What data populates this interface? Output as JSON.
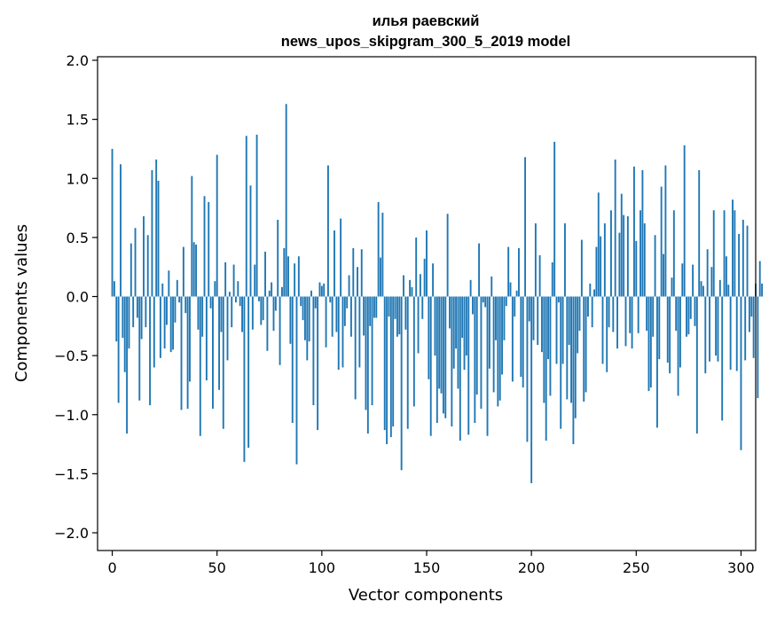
{
  "chart_data": {
    "type": "bar",
    "title_line1": "илья раевский",
    "title_line2": "news_upos_skipgram_300_5_2019 model",
    "xlabel": "Vector components",
    "ylabel": "Components values",
    "xlim": [
      -7,
      307
    ],
    "ylim": [
      -2.15,
      2.03
    ],
    "xticks": [
      0,
      50,
      100,
      150,
      200,
      250,
      300
    ],
    "xtick_labels": [
      "0",
      "50",
      "100",
      "150",
      "200",
      "250",
      "300"
    ],
    "yticks": [
      2.0,
      1.5,
      1.0,
      0.5,
      0.0,
      -0.5,
      -1.0,
      -1.5,
      -2.0
    ],
    "ytick_labels": [
      "2.0",
      "1.5",
      "1.0",
      "0.5",
      "0.0",
      "−0.5",
      "−1.0",
      "−1.5",
      "−2.0"
    ],
    "bar_color": "#1f77b4",
    "values": [
      1.25,
      0.13,
      -0.38,
      -0.9,
      1.12,
      -0.35,
      -0.64,
      -1.16,
      -0.44,
      0.45,
      -0.26,
      0.58,
      -0.18,
      -0.88,
      -0.36,
      0.68,
      -0.26,
      0.52,
      -0.92,
      1.07,
      -0.6,
      1.16,
      0.98,
      -0.52,
      0.11,
      -0.44,
      -0.24,
      0.22,
      -0.47,
      -0.45,
      -0.22,
      0.14,
      -0.05,
      -0.96,
      0.42,
      -0.14,
      -0.95,
      -0.72,
      1.02,
      0.46,
      0.44,
      -0.28,
      -1.18,
      -0.34,
      0.85,
      -0.71,
      0.8,
      -0.1,
      -0.95,
      0.13,
      1.2,
      -0.79,
      -0.3,
      -1.12,
      0.29,
      -0.54,
      0.04,
      -0.26,
      0.27,
      -0.05,
      0.13,
      -0.08,
      -0.3,
      -1.4,
      1.36,
      -1.28,
      0.94,
      -0.28,
      0.27,
      1.37,
      -0.04,
      -0.24,
      -0.2,
      0.38,
      -0.46,
      0.05,
      0.12,
      -0.29,
      -0.12,
      0.65,
      -0.58,
      0.08,
      0.41,
      1.63,
      0.34,
      -0.4,
      -1.07,
      0.28,
      -1.42,
      0.34,
      -0.08,
      -0.2,
      -0.37,
      -0.54,
      -0.38,
      0.05,
      -0.92,
      -0.1,
      -1.13,
      0.12,
      0.09,
      0.11,
      -0.43,
      1.11,
      -0.05,
      -0.34,
      0.56,
      -0.3,
      -0.62,
      0.66,
      -0.6,
      -0.25,
      -0.1,
      0.18,
      -0.34,
      0.41,
      -0.87,
      0.25,
      -0.6,
      0.4,
      -0.33,
      -0.96,
      -1.16,
      -0.25,
      -0.92,
      -0.18,
      -0.18,
      0.8,
      0.33,
      0.71,
      -1.13,
      -1.25,
      -0.17,
      -1.19,
      -1.1,
      -0.19,
      -0.34,
      -0.32,
      -1.47,
      0.18,
      -0.28,
      -1.12,
      0.14,
      0.08,
      -0.93,
      0.5,
      -0.48,
      0.19,
      -0.19,
      0.32,
      0.56,
      -0.7,
      -1.18,
      0.28,
      -0.5,
      -1.07,
      -0.78,
      -0.82,
      -0.99,
      -1.03,
      0.7,
      -0.27,
      -1.1,
      -0.61,
      -0.44,
      -0.78,
      -1.22,
      -0.35,
      -0.62,
      -0.5,
      -1.17,
      0.14,
      -0.15,
      -1.07,
      -0.83,
      0.45,
      -0.95,
      -0.05,
      -0.09,
      -1.18,
      -0.61,
      0.17,
      -0.81,
      -0.37,
      -0.93,
      -0.88,
      -0.66,
      -0.37,
      -0.08,
      0.42,
      0.12,
      -0.72,
      -0.17,
      0.05,
      0.41,
      -0.68,
      -0.77,
      1.18,
      -1.23,
      -0.21,
      -1.58,
      -0.37,
      0.62,
      -0.41,
      0.35,
      -0.47,
      -0.9,
      -1.22,
      -0.53,
      -0.84,
      0.29,
      1.31,
      -0.57,
      -0.05,
      -1.12,
      -0.57,
      0.62,
      -0.87,
      -0.41,
      -0.9,
      -1.25,
      -1.03,
      -0.48,
      -0.29,
      0.48,
      -0.89,
      -0.81,
      -0.17,
      0.11,
      -0.26,
      0.06,
      0.42,
      0.88,
      0.51,
      -0.57,
      0.62,
      -0.64,
      -0.26,
      0.73,
      -0.3,
      1.16,
      -0.44,
      0.54,
      0.87,
      0.69,
      -0.42,
      0.68,
      -0.31,
      -0.44,
      1.1,
      0.47,
      -0.31,
      0.73,
      1.07,
      0.62,
      -0.29,
      -0.8,
      -0.77,
      -0.34,
      0.52,
      -1.11,
      -0.53,
      0.93,
      0.36,
      1.11,
      -0.56,
      -0.65,
      0.16,
      0.73,
      -0.29,
      -0.84,
      -0.6,
      0.28,
      1.28,
      -0.34,
      -0.32,
      -0.19,
      0.27,
      -0.25,
      -1.16,
      1.07,
      0.13,
      0.09,
      -0.65,
      0.4,
      -0.55,
      0.25,
      0.73,
      -0.5,
      -0.55,
      0.14,
      -1.05,
      0.73,
      0.34,
      0.1,
      -0.62,
      0.82,
      0.73,
      -0.63,
      0.53,
      -1.3,
      0.65,
      -0.54,
      0.6,
      -0.3,
      -0.17,
      -0.52,
      0.11,
      -0.86,
      0.3,
      0.11
    ]
  }
}
